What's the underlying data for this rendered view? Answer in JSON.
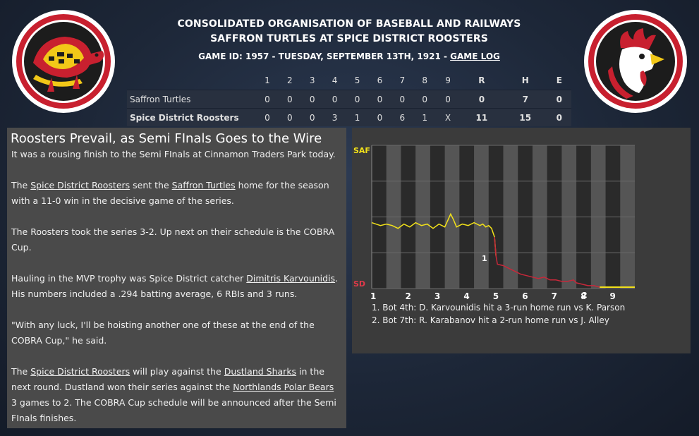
{
  "header": {
    "league": "CONSOLIDATED ORGANISATION OF BASEBALL AND RAILWAYS",
    "matchup": "SAFFRON TURTLES AT SPICE DISTRICT ROOSTERS",
    "game_info": "GAME ID: 1957 - TUESDAY, SEPTEMBER 13TH, 1921 - ",
    "game_log_link": "GAME LOG"
  },
  "box_score": {
    "columns": [
      "1",
      "2",
      "3",
      "4",
      "5",
      "6",
      "7",
      "8",
      "9",
      "R",
      "H",
      "E"
    ],
    "rows": [
      {
        "team": "Saffron Turtles",
        "cells": [
          "0",
          "0",
          "0",
          "0",
          "0",
          "0",
          "0",
          "0",
          "0",
          "0",
          "7",
          "0"
        ]
      },
      {
        "team": "Spice District Roosters",
        "cells": [
          "0",
          "0",
          "0",
          "3",
          "1",
          "0",
          "6",
          "1",
          "X",
          "11",
          "15",
          "0"
        ]
      }
    ]
  },
  "story": {
    "headline": "Roosters Prevail, as Semi FInals Goes to the Wire",
    "p1": "It was a rousing finish to the Semi FInals at Cinnamon Traders Park today.",
    "p2_a": "The ",
    "p2_link1": "Spice District Roosters",
    "p2_b": " sent the ",
    "p2_link2": "Saffron Turtles",
    "p2_c": " home for the season with a 11-0 win in the decisive game of the series.",
    "p3": "The Roosters took the series 3-2. Up next on their schedule is the COBRA Cup.",
    "p4_a": "Hauling in the MVP trophy was Spice District catcher ",
    "p4_link": "Dimitris Karvounidis",
    "p4_b": ". His numbers included a .294 batting average, 6 RBIs and 3 runs.",
    "p5": "\"With any luck, I'll be hoisting another one of these at the end of the COBRA Cup,\" he said.",
    "p6_a": "The ",
    "p6_link1": "Spice District Roosters",
    "p6_b": " will play against the ",
    "p6_link2": "Dustland Sharks",
    "p6_c": " in the next round. Dustland won their series against the ",
    "p6_link3": "Northlands Polar Bears",
    "p6_d": " 3 games to 2. The COBRA Cup schedule will be announced after the Semi FInals finishes."
  },
  "chart_data": {
    "type": "line",
    "y_top_label": "SAF",
    "y_bottom_label": "SD",
    "x_ticks": [
      "1",
      "2",
      "3",
      "4",
      "5",
      "6",
      "7",
      "8",
      "9"
    ],
    "y_range": [
      0,
      1
    ],
    "annotation_markers": [
      "1",
      "2"
    ],
    "series": [
      {
        "x": [
          0,
          0.3,
          0.5,
          0.7,
          0.9,
          1.1,
          1.3,
          1.5,
          1.7,
          1.9,
          2.1,
          2.3,
          2.5,
          2.7,
          2.8,
          2.9,
          3.1,
          3.3,
          3.5,
          3.7,
          3.8,
          3.9,
          4.0,
          4.1,
          4.2,
          4.25,
          4.3,
          4.5,
          4.7,
          4.9,
          5.1,
          5.3,
          5.5,
          5.7,
          5.9,
          6.1,
          6.3,
          6.5,
          6.7,
          6.9,
          7.0,
          7.2,
          7.4,
          7.6,
          7.8,
          8.0,
          8.2,
          8.4,
          8.6,
          8.8,
          9.0
        ],
        "y": [
          0.46,
          0.44,
          0.45,
          0.44,
          0.42,
          0.45,
          0.43,
          0.46,
          0.44,
          0.45,
          0.42,
          0.45,
          0.43,
          0.52,
          0.48,
          0.43,
          0.45,
          0.44,
          0.46,
          0.44,
          0.45,
          0.43,
          0.44,
          0.42,
          0.36,
          0.23,
          0.17,
          0.16,
          0.14,
          0.12,
          0.1,
          0.09,
          0.08,
          0.07,
          0.08,
          0.06,
          0.06,
          0.05,
          0.05,
          0.06,
          0.04,
          0.03,
          0.02,
          0.02,
          0.01,
          0.01,
          0.01,
          0.01,
          0.01,
          0.01,
          0.01
        ]
      }
    ],
    "notes": [
      "1. Bot 4th: D. Karvounidis hit a 3-run home run vs K. Parson",
      "2. Bot 7th: R. Karabanov hit a 2-run home run vs J. Alley"
    ],
    "colors": {
      "favor_saf": "#f2e11a",
      "favor_sd": "#c8283a",
      "stripe": "#555555"
    }
  }
}
